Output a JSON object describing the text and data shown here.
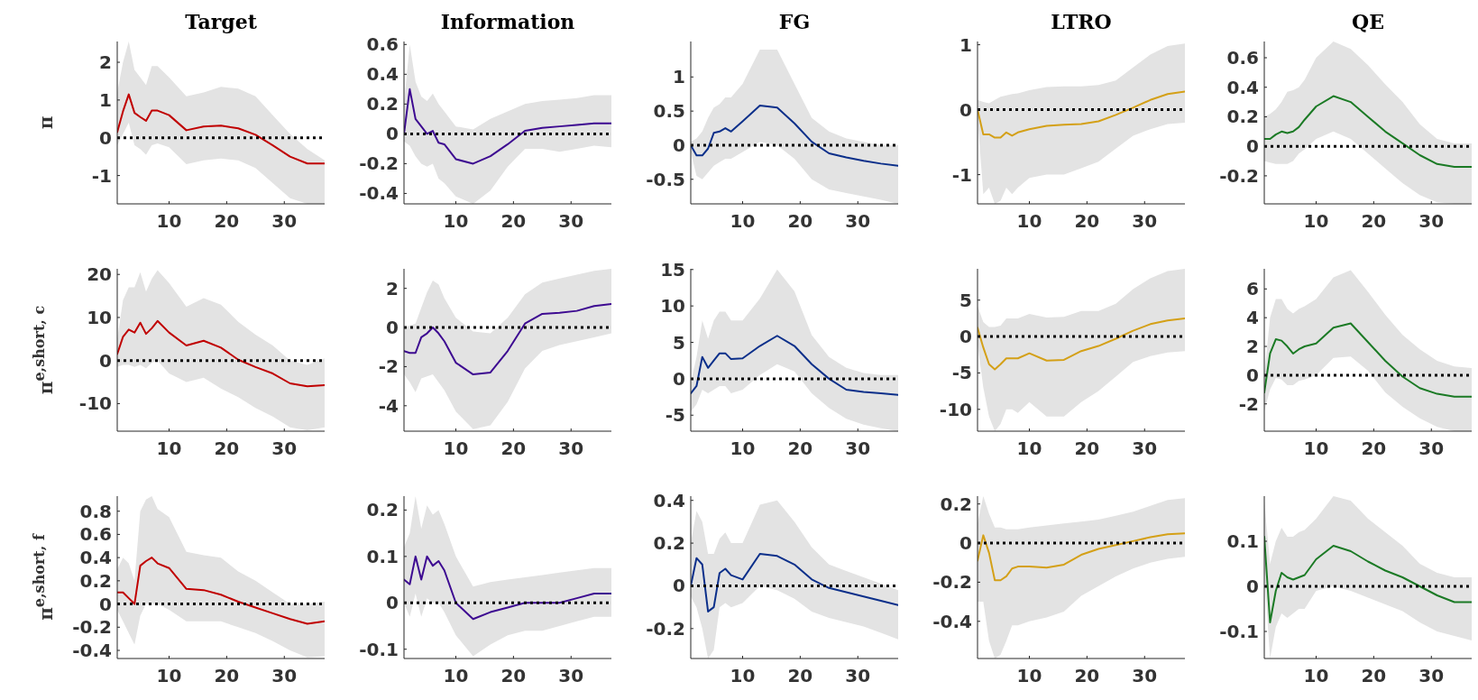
{
  "chart_data": [
    {
      "type": "line",
      "title": "Target",
      "ylabel": "π",
      "xlim": [
        1,
        37
      ],
      "xticks": [
        10,
        20,
        30
      ],
      "ylim": [
        -1.75,
        2.55
      ],
      "yticks": [
        -1,
        0,
        1,
        2
      ],
      "x": [
        1,
        2,
        3,
        4,
        5,
        6,
        7,
        8,
        10,
        13,
        16,
        19,
        22,
        25,
        28,
        31,
        34,
        37
      ],
      "ref_lines": [
        {
          "axis": "y",
          "value": 0,
          "color": "#000000",
          "line_style": "dotted"
        }
      ],
      "series": [
        {
          "color": "#c00000",
          "values": [
            0.15,
            0.7,
            1.15,
            0.66,
            0.55,
            0.45,
            0.72,
            0.72,
            0.6,
            0.2,
            0.3,
            0.32,
            0.25,
            0.08,
            -0.2,
            -0.5,
            -0.68,
            -0.68
          ],
          "upper": [
            1.2,
            2.0,
            2.55,
            1.8,
            1.6,
            1.4,
            1.9,
            1.9,
            1.6,
            1.1,
            1.2,
            1.35,
            1.3,
            1.1,
            0.6,
            0.1,
            -0.3,
            -0.6
          ],
          "lower": [
            -0.2,
            0.1,
            0.4,
            -0.2,
            -0.3,
            -0.45,
            -0.2,
            -0.15,
            -0.25,
            -0.7,
            -0.6,
            -0.55,
            -0.6,
            -0.8,
            -1.2,
            -1.6,
            -1.75,
            -1.75
          ]
        }
      ]
    },
    {
      "type": "line",
      "title": "Information",
      "xlim": [
        1,
        37
      ],
      "xticks": [
        10,
        20,
        30
      ],
      "ylim": [
        -0.47,
        0.62
      ],
      "yticks": [
        -0.4,
        -0.2,
        0,
        0.2,
        0.4,
        0.6
      ],
      "x": [
        1,
        2,
        3,
        4,
        5,
        6,
        7,
        8,
        10,
        13,
        16,
        19,
        22,
        25,
        28,
        31,
        34,
        37
      ],
      "ref_lines": [
        {
          "axis": "y",
          "value": 0,
          "color": "#000000",
          "line_style": "dotted"
        }
      ],
      "series": [
        {
          "color": "#3d0a91",
          "values": [
            0,
            0.3,
            0.1,
            0.05,
            0,
            0.02,
            -0.06,
            -0.07,
            -0.17,
            -0.2,
            -0.15,
            -0.07,
            0.02,
            0.04,
            0.05,
            0.06,
            0.07,
            0.07
          ],
          "upper": [
            0.2,
            0.6,
            0.35,
            0.25,
            0.22,
            0.27,
            0.2,
            0.15,
            0.05,
            0.03,
            0.1,
            0.15,
            0.2,
            0.22,
            0.23,
            0.24,
            0.26,
            0.26
          ],
          "lower": [
            -0.05,
            -0.08,
            -0.15,
            -0.2,
            -0.22,
            -0.2,
            -0.3,
            -0.33,
            -0.42,
            -0.47,
            -0.38,
            -0.22,
            -0.1,
            -0.1,
            -0.12,
            -0.1,
            -0.08,
            -0.09
          ]
        }
      ]
    },
    {
      "type": "line",
      "title": "FG",
      "xlim": [
        1,
        37
      ],
      "xticks": [
        10,
        20,
        30
      ],
      "ylim": [
        -0.86,
        1.52
      ],
      "yticks": [
        -0.5,
        0,
        0.5,
        1
      ],
      "x": [
        1,
        2,
        3,
        4,
        5,
        6,
        7,
        8,
        10,
        13,
        16,
        19,
        22,
        25,
        28,
        31,
        34,
        37
      ],
      "ref_lines": [
        {
          "axis": "y",
          "value": 0,
          "color": "#000000",
          "line_style": "dotted"
        }
      ],
      "series": [
        {
          "color": "#0b2f8a",
          "values": [
            0,
            -0.15,
            -0.15,
            -0.05,
            0.18,
            0.2,
            0.25,
            0.2,
            0.35,
            0.58,
            0.55,
            0.32,
            0.05,
            -0.12,
            -0.18,
            -0.23,
            -0.27,
            -0.3
          ],
          "upper": [
            0.05,
            0.1,
            0.2,
            0.4,
            0.55,
            0.6,
            0.7,
            0.7,
            0.9,
            1.4,
            1.4,
            0.9,
            0.4,
            0.2,
            0.1,
            0.05,
            0,
            0
          ],
          "lower": [
            -0.1,
            -0.45,
            -0.5,
            -0.4,
            -0.3,
            -0.25,
            -0.2,
            -0.2,
            -0.1,
            0.05,
            0,
            -0.2,
            -0.5,
            -0.65,
            -0.7,
            -0.75,
            -0.8,
            -0.86
          ]
        }
      ]
    },
    {
      "type": "line",
      "title": "LTRO",
      "xlim": [
        1,
        37
      ],
      "xticks": [
        10,
        20,
        30
      ],
      "ylim": [
        -1.45,
        1.05
      ],
      "yticks": [
        -1,
        0,
        1
      ],
      "x": [
        1,
        2,
        3,
        4,
        5,
        6,
        7,
        8,
        10,
        13,
        16,
        19,
        22,
        25,
        28,
        31,
        34,
        37
      ],
      "ref_lines": [
        {
          "axis": "y",
          "value": 0,
          "color": "#000000",
          "line_style": "dotted"
        }
      ],
      "series": [
        {
          "color": "#d4a017",
          "values": [
            0,
            -0.38,
            -0.38,
            -0.43,
            -0.43,
            -0.35,
            -0.4,
            -0.35,
            -0.3,
            -0.25,
            -0.23,
            -0.22,
            -0.18,
            -0.08,
            0.03,
            0.15,
            0.24,
            0.28
          ],
          "upper": [
            0.15,
            0.12,
            0.1,
            0.15,
            0.2,
            0.22,
            0.24,
            0.25,
            0.3,
            0.35,
            0.36,
            0.36,
            0.38,
            0.45,
            0.65,
            0.85,
            0.98,
            1.02
          ],
          "lower": [
            -0.1,
            -1.3,
            -1.2,
            -1.45,
            -1.4,
            -1.2,
            -1.3,
            -1.2,
            -1.05,
            -1,
            -1,
            -0.9,
            -0.8,
            -0.6,
            -0.4,
            -0.3,
            -0.22,
            -0.2
          ]
        }
      ]
    },
    {
      "type": "line",
      "title": "QE",
      "xlim": [
        1,
        37
      ],
      "xticks": [
        10,
        20,
        30
      ],
      "ylim": [
        -0.39,
        0.71
      ],
      "yticks": [
        -0.2,
        0,
        0.2,
        0.4,
        0.6
      ],
      "x": [
        1,
        2,
        3,
        4,
        5,
        6,
        7,
        8,
        10,
        13,
        16,
        19,
        22,
        25,
        28,
        31,
        34,
        37
      ],
      "ref_lines": [
        {
          "axis": "y",
          "value": 0,
          "color": "#000000",
          "line_style": "dotted"
        }
      ],
      "series": [
        {
          "color": "#1b7a25",
          "values": [
            0.05,
            0.05,
            0.08,
            0.1,
            0.09,
            0.1,
            0.13,
            0.18,
            0.27,
            0.34,
            0.3,
            0.2,
            0.1,
            0.02,
            -0.06,
            -0.12,
            -0.14,
            -0.14
          ],
          "upper": [
            0.2,
            0.22,
            0.25,
            0.3,
            0.37,
            0.38,
            0.4,
            0.45,
            0.6,
            0.71,
            0.66,
            0.55,
            0.42,
            0.3,
            0.15,
            0.05,
            0.02,
            0.02
          ],
          "lower": [
            -0.1,
            -0.11,
            -0.12,
            -0.12,
            -0.12,
            -0.1,
            -0.05,
            -0.02,
            0.05,
            0.1,
            0.05,
            -0.05,
            -0.15,
            -0.25,
            -0.33,
            -0.38,
            -0.39,
            -0.39
          ]
        }
      ]
    },
    {
      "type": "line",
      "ylabel": "π$^{e,short, c}$",
      "xlim": [
        1,
        37
      ],
      "xticks": [
        10,
        20,
        30
      ],
      "ylim": [
        -16.4,
        21.3
      ],
      "yticks": [
        -10,
        0,
        10,
        20
      ],
      "x": [
        1,
        2,
        3,
        4,
        5,
        6,
        7,
        8,
        10,
        13,
        16,
        19,
        22,
        25,
        28,
        31,
        34,
        37
      ],
      "ref_lines": [
        {
          "axis": "y",
          "value": 0,
          "color": "#000000",
          "line_style": "dotted"
        }
      ],
      "series": [
        {
          "color": "#c00000",
          "values": [
            1.5,
            5.5,
            7.2,
            6.5,
            8.8,
            6.2,
            7.5,
            9.2,
            6.5,
            3.5,
            4.6,
            3,
            0.2,
            -1.5,
            -3,
            -5.3,
            -6,
            -5.7
          ],
          "upper": [
            5,
            14,
            17,
            17,
            20.5,
            16,
            19,
            21,
            18,
            12.5,
            14.5,
            13,
            9,
            6,
            3.5,
            0,
            -1,
            0.5
          ],
          "lower": [
            -1.5,
            -1,
            -1,
            -1.5,
            -1,
            -1.8,
            -0.5,
            0,
            -3,
            -5,
            -4,
            -6.5,
            -8.5,
            -11,
            -13,
            -15.5,
            -16.2,
            -15.5
          ]
        }
      ]
    },
    {
      "type": "line",
      "xlim": [
        1,
        37
      ],
      "xticks": [
        10,
        20,
        30
      ],
      "ylim": [
        -5.3,
        3.0
      ],
      "yticks": [
        -4,
        -2,
        0,
        2
      ],
      "x": [
        1,
        2,
        3,
        4,
        5,
        6,
        7,
        8,
        10,
        13,
        16,
        19,
        22,
        25,
        28,
        31,
        34,
        37
      ],
      "ref_lines": [
        {
          "axis": "y",
          "value": 0,
          "color": "#000000",
          "line_style": "dotted"
        }
      ],
      "series": [
        {
          "color": "#3d0a91",
          "values": [
            -1.2,
            -1.3,
            -1.3,
            -0.5,
            -0.3,
            0,
            -0.3,
            -0.7,
            -1.8,
            -2.4,
            -2.3,
            -1.2,
            0.2,
            0.7,
            0.75,
            0.85,
            1.1,
            1.2
          ],
          "upper": [
            0,
            0.1,
            0.2,
            1,
            1.8,
            2.4,
            2.2,
            1.5,
            0.5,
            -0.2,
            -0.3,
            0.5,
            1.7,
            2.3,
            2.5,
            2.7,
            2.9,
            3
          ],
          "lower": [
            -2.4,
            -2.8,
            -3.3,
            -2.6,
            -2.5,
            -2.4,
            -2.8,
            -3.2,
            -4.3,
            -5.2,
            -5,
            -3.8,
            -2.1,
            -1.2,
            -0.9,
            -0.7,
            -0.5,
            -0.3
          ]
        }
      ]
    },
    {
      "type": "line",
      "xlim": [
        1,
        37
      ],
      "xticks": [
        10,
        20,
        30
      ],
      "ylim": [
        -7.2,
        15.1
      ],
      "yticks": [
        -5,
        0,
        5,
        10,
        15
      ],
      "x": [
        1,
        2,
        3,
        4,
        5,
        6,
        7,
        8,
        10,
        13,
        16,
        19,
        22,
        25,
        28,
        31,
        34,
        37
      ],
      "ref_lines": [
        {
          "axis": "y",
          "value": 0,
          "color": "#000000",
          "line_style": "dotted"
        }
      ],
      "series": [
        {
          "color": "#0b2f8a",
          "values": [
            -2,
            -1,
            3,
            1.5,
            2.5,
            3.5,
            3.5,
            2.7,
            2.8,
            4.5,
            5.9,
            4.5,
            2,
            0,
            -1.5,
            -1.8,
            -2,
            -2.2
          ],
          "upper": [
            -0.5,
            3,
            8,
            5.5,
            8,
            9.2,
            9.2,
            8,
            8,
            11,
            15,
            12,
            6,
            3,
            1.5,
            0.8,
            0.5,
            0.5
          ],
          "lower": [
            -4.5,
            -3.5,
            -1.5,
            -2,
            -1.5,
            -1,
            -1,
            -2,
            -1.5,
            0.5,
            2,
            1,
            -2,
            -4,
            -5.5,
            -6.3,
            -6.8,
            -7.2
          ]
        }
      ]
    },
    {
      "type": "line",
      "xlim": [
        1,
        37
      ],
      "xticks": [
        10,
        20,
        30
      ],
      "ylim": [
        -13,
        9.3
      ],
      "yticks": [
        -10,
        -5,
        0,
        5
      ],
      "x": [
        1,
        2,
        3,
        4,
        5,
        6,
        7,
        8,
        10,
        13,
        16,
        19,
        22,
        25,
        28,
        31,
        34,
        37
      ],
      "ref_lines": [
        {
          "axis": "y",
          "value": 0,
          "color": "#000000",
          "line_style": "dotted"
        }
      ],
      "series": [
        {
          "color": "#d4a017",
          "values": [
            1.2,
            -1.5,
            -3.8,
            -4.5,
            -3.8,
            -3,
            -3,
            -3,
            -2.3,
            -3.3,
            -3.2,
            -2,
            -1.3,
            -0.3,
            0.8,
            1.7,
            2.2,
            2.5
          ],
          "upper": [
            4.2,
            2,
            1.3,
            1.3,
            1.5,
            2.5,
            2.5,
            2.5,
            3.1,
            2.6,
            2.7,
            3.5,
            3.5,
            4.5,
            6.5,
            8,
            9,
            9.3
          ],
          "lower": [
            -1,
            -7,
            -11,
            -13,
            -12,
            -10,
            -10,
            -10.5,
            -9,
            -11,
            -11,
            -9,
            -7.5,
            -5.5,
            -3.5,
            -2.7,
            -2.2,
            -2
          ]
        }
      ]
    },
    {
      "type": "line",
      "xlim": [
        1,
        37
      ],
      "xticks": [
        10,
        20,
        30
      ],
      "ylim": [
        -3.9,
        7.4
      ],
      "yticks": [
        -2,
        0,
        2,
        4,
        6
      ],
      "x": [
        1,
        2,
        3,
        4,
        5,
        6,
        7,
        8,
        10,
        13,
        16,
        19,
        22,
        25,
        28,
        31,
        34,
        37
      ],
      "ref_lines": [
        {
          "axis": "y",
          "value": 0,
          "color": "#000000",
          "line_style": "dotted"
        }
      ],
      "series": [
        {
          "color": "#1b7a25",
          "values": [
            -1.2,
            1.5,
            2.5,
            2.4,
            2,
            1.5,
            1.8,
            2,
            2.2,
            3.3,
            3.6,
            2.3,
            1,
            -0.1,
            -0.9,
            -1.3,
            -1.5,
            -1.5
          ],
          "upper": [
            0,
            4,
            5.3,
            5.3,
            4.6,
            4.3,
            4.6,
            4.8,
            5.3,
            6.8,
            7.3,
            5.8,
            4.2,
            2.8,
            1.8,
            1,
            0.6,
            0.5
          ],
          "lower": [
            -2.5,
            -1,
            -0.2,
            -0.3,
            -0.7,
            -0.7,
            -0.4,
            -0.3,
            0,
            1.2,
            1.3,
            0.3,
            -1.2,
            -2.2,
            -3,
            -3.6,
            -3.9,
            -3.9
          ]
        }
      ]
    },
    {
      "type": "line",
      "ylabel": "π$^{e,short, f}$",
      "xlim": [
        1,
        37
      ],
      "xticks": [
        10,
        20,
        30
      ],
      "ylim": [
        -0.47,
        0.93
      ],
      "yticks": [
        -0.4,
        -0.2,
        0,
        0.2,
        0.4,
        0.6,
        0.8
      ],
      "x": [
        1,
        2,
        3,
        4,
        5,
        6,
        7,
        8,
        10,
        13,
        16,
        19,
        22,
        25,
        28,
        31,
        34,
        37
      ],
      "ref_lines": [
        {
          "axis": "y",
          "value": 0,
          "color": "#000000",
          "line_style": "dotted"
        }
      ],
      "series": [
        {
          "color": "#c00000",
          "values": [
            0.1,
            0.1,
            0.05,
            0,
            0.33,
            0.37,
            0.4,
            0.35,
            0.31,
            0.13,
            0.12,
            0.08,
            0.02,
            -0.03,
            -0.08,
            -0.13,
            -0.17,
            -0.15
          ],
          "upper": [
            0.3,
            0.4,
            0.35,
            0.2,
            0.8,
            0.9,
            0.93,
            0.82,
            0.75,
            0.45,
            0.42,
            0.4,
            0.28,
            0.2,
            0.1,
            0,
            0,
            0.02
          ],
          "lower": [
            -0.05,
            -0.15,
            -0.25,
            -0.35,
            -0.1,
            0,
            0,
            0,
            -0.05,
            -0.15,
            -0.15,
            -0.15,
            -0.2,
            -0.25,
            -0.32,
            -0.4,
            -0.46,
            -0.45
          ]
        }
      ]
    },
    {
      "type": "line",
      "xlim": [
        1,
        37
      ],
      "xticks": [
        10,
        20,
        30
      ],
      "ylim": [
        -0.12,
        0.23
      ],
      "yticks": [
        -0.1,
        0,
        0.1,
        0.2
      ],
      "x": [
        1,
        2,
        3,
        4,
        5,
        6,
        7,
        8,
        10,
        13,
        16,
        19,
        22,
        25,
        28,
        31,
        34,
        37
      ],
      "ref_lines": [
        {
          "axis": "y",
          "value": 0,
          "color": "#000000",
          "line_style": "dotted"
        }
      ],
      "series": [
        {
          "color": "#3d0a91",
          "values": [
            0.05,
            0.04,
            0.1,
            0.05,
            0.1,
            0.08,
            0.09,
            0.07,
            0,
            -0.035,
            -0.02,
            -0.01,
            0,
            0,
            0,
            0.01,
            0.02,
            0.02
          ],
          "upper": [
            0.12,
            0.15,
            0.23,
            0.16,
            0.21,
            0.19,
            0.2,
            0.17,
            0.1,
            0.035,
            0.045,
            0.05,
            0.055,
            0.06,
            0.065,
            0.07,
            0.075,
            0.075
          ],
          "lower": [
            0,
            -0.03,
            0.02,
            -0.03,
            0.01,
            0,
            0,
            -0.02,
            -0.07,
            -0.115,
            -0.09,
            -0.07,
            -0.06,
            -0.06,
            -0.05,
            -0.04,
            -0.03,
            -0.03
          ]
        }
      ]
    },
    {
      "type": "line",
      "xlim": [
        1,
        37
      ],
      "xticks": [
        10,
        20,
        30
      ],
      "ylim": [
        -0.34,
        0.42
      ],
      "yticks": [
        -0.2,
        0,
        0.2,
        0.4
      ],
      "x": [
        1,
        2,
        3,
        4,
        5,
        6,
        7,
        8,
        10,
        13,
        16,
        19,
        22,
        25,
        28,
        31,
        34,
        37
      ],
      "ref_lines": [
        {
          "axis": "y",
          "value": 0,
          "color": "#000000",
          "line_style": "dotted"
        }
      ],
      "series": [
        {
          "color": "#0b2f8a",
          "values": [
            0,
            0.13,
            0.1,
            -0.12,
            -0.1,
            0.06,
            0.08,
            0.05,
            0.03,
            0.15,
            0.14,
            0.1,
            0.03,
            -0.01,
            -0.03,
            -0.05,
            -0.07,
            -0.09
          ],
          "upper": [
            0.2,
            0.35,
            0.3,
            0.15,
            0.15,
            0.22,
            0.25,
            0.2,
            0.2,
            0.38,
            0.4,
            0.3,
            0.18,
            0.1,
            0.07,
            0.04,
            0.01,
            -0.02
          ],
          "lower": [
            -0.05,
            -0.1,
            -0.2,
            -0.34,
            -0.3,
            -0.1,
            -0.08,
            -0.1,
            -0.08,
            0,
            -0.02,
            -0.06,
            -0.12,
            -0.15,
            -0.17,
            -0.19,
            -0.22,
            -0.25
          ]
        }
      ]
    },
    {
      "type": "line",
      "xlim": [
        1,
        37
      ],
      "xticks": [
        10,
        20,
        30
      ],
      "ylim": [
        -0.59,
        0.24
      ],
      "yticks": [
        -0.4,
        -0.2,
        0,
        0.2
      ],
      "x": [
        1,
        2,
        3,
        4,
        5,
        6,
        7,
        8,
        10,
        13,
        16,
        19,
        22,
        25,
        28,
        31,
        34,
        37
      ],
      "ref_lines": [
        {
          "axis": "y",
          "value": 0,
          "color": "#000000",
          "line_style": "dotted"
        }
      ],
      "series": [
        {
          "color": "#d4a017",
          "values": [
            -0.09,
            0.04,
            -0.05,
            -0.19,
            -0.19,
            -0.17,
            -0.13,
            -0.12,
            -0.12,
            -0.125,
            -0.11,
            -0.06,
            -0.03,
            -0.01,
            0.01,
            0.03,
            0.045,
            0.05
          ],
          "upper": [
            0.1,
            0.24,
            0.15,
            0.08,
            0.08,
            0.07,
            0.07,
            0.07,
            0.08,
            0.09,
            0.1,
            0.11,
            0.12,
            0.14,
            0.16,
            0.19,
            0.22,
            0.23
          ],
          "lower": [
            -0.3,
            -0.3,
            -0.5,
            -0.59,
            -0.57,
            -0.5,
            -0.42,
            -0.42,
            -0.4,
            -0.38,
            -0.35,
            -0.27,
            -0.22,
            -0.17,
            -0.13,
            -0.1,
            -0.08,
            -0.07
          ]
        }
      ]
    },
    {
      "type": "line",
      "xlim": [
        1,
        37
      ],
      "xticks": [
        10,
        20,
        30
      ],
      "ylim": [
        -0.16,
        0.2
      ],
      "yticks": [
        -0.1,
        0,
        0.1
      ],
      "x": [
        1,
        2,
        3,
        4,
        5,
        6,
        7,
        8,
        10,
        13,
        16,
        19,
        22,
        25,
        28,
        31,
        34,
        37
      ],
      "ref_lines": [
        {
          "axis": "y",
          "value": 0,
          "color": "#000000",
          "line_style": "dotted"
        }
      ],
      "series": [
        {
          "color": "#1b7a25",
          "values": [
            0.11,
            -0.08,
            -0.01,
            0.03,
            0.02,
            0.015,
            0.02,
            0.025,
            0.06,
            0.09,
            0.078,
            0.055,
            0.035,
            0.02,
            0,
            -0.02,
            -0.035,
            -0.035
          ],
          "upper": [
            0.19,
            0.05,
            0.1,
            0.13,
            0.11,
            0.11,
            0.12,
            0.125,
            0.15,
            0.2,
            0.19,
            0.15,
            0.12,
            0.09,
            0.05,
            0.03,
            0.02,
            0.02
          ],
          "lower": [
            0.03,
            -0.16,
            -0.09,
            -0.06,
            -0.07,
            -0.06,
            -0.05,
            -0.05,
            -0.01,
            0,
            -0.01,
            -0.025,
            -0.04,
            -0.055,
            -0.08,
            -0.1,
            -0.11,
            -0.12
          ]
        }
      ]
    }
  ]
}
